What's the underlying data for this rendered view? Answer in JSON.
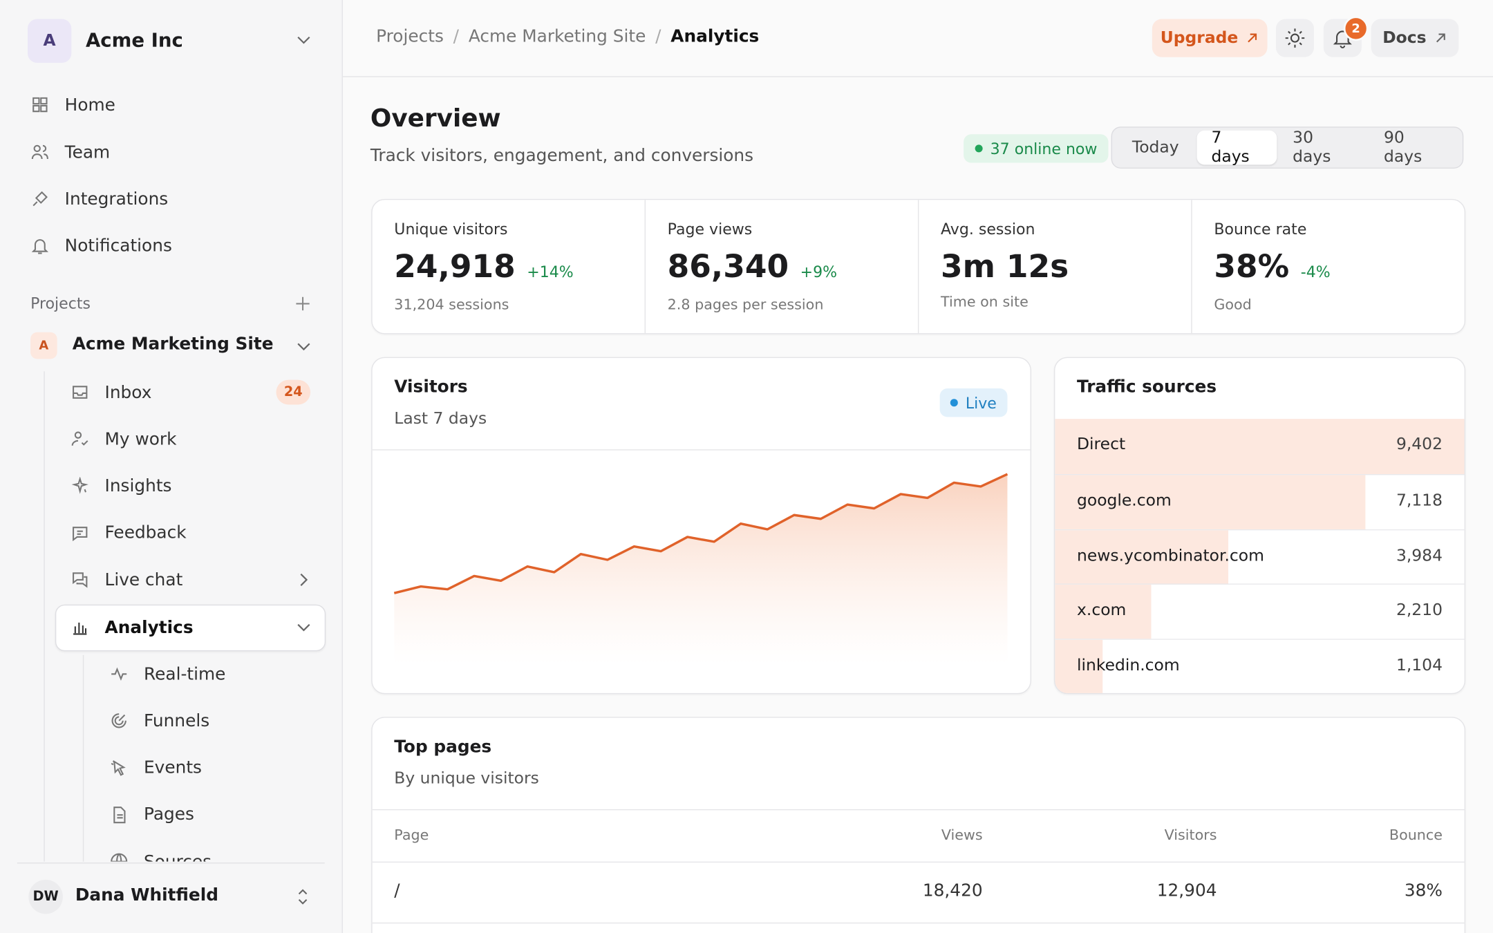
{
  "sidebar": {
    "org": {
      "initial": "A",
      "name": "Acme Inc"
    },
    "nav": [
      "Home",
      "Team",
      "Integrations",
      "Notifications"
    ],
    "projects_label": "Projects",
    "project": {
      "initial": "A",
      "name": "Acme Marketing Site"
    },
    "items": [
      {
        "label": "Inbox",
        "badge": "24"
      },
      {
        "label": "My work"
      },
      {
        "label": "Insights"
      },
      {
        "label": "Feedback"
      },
      {
        "label": "Live chat"
      }
    ],
    "analytics": "Analytics",
    "sub": [
      "Real-time",
      "Funnels",
      "Events",
      "Pages",
      "Sources"
    ],
    "user": {
      "initials": "DW",
      "name": "Dana Whitfield"
    }
  },
  "header": {
    "breadcrumbs": [
      "Projects",
      "Acme Marketing Site",
      "Analytics"
    ],
    "separator": "/",
    "upgrade": "Upgrade",
    "notifications": "2",
    "docs": "Docs"
  },
  "overview": {
    "title": "Overview",
    "subtitle": "Track visitors, engagement, and conversions",
    "online": "37 online now",
    "ranges": [
      "Today",
      "7 days",
      "30 days",
      "90 days"
    ],
    "active_range": 1
  },
  "stats": [
    {
      "label": "Unique visitors",
      "value": "24,918",
      "change": "+14%",
      "note": "31,204 sessions"
    },
    {
      "label": "Page views",
      "value": "86,340",
      "change": "+9%",
      "note": "2.8 pages per session"
    },
    {
      "label": "Avg. session",
      "value": "3m 12s",
      "note": "Time on site"
    },
    {
      "label": "Bounce rate",
      "value": "38%",
      "change": "-4%",
      "note": "Good"
    }
  ],
  "chart_data": [
    {
      "type": "line",
      "title": "Visitors",
      "subtitle": "Last 7 days",
      "badge": "Live",
      "color": "#e0622a",
      "ylim": [
        0,
        225
      ],
      "values": [
        75,
        82,
        79,
        93,
        88,
        103,
        97,
        116,
        110,
        124,
        119,
        134,
        129,
        148,
        142,
        157,
        153,
        168,
        164,
        179,
        175,
        191,
        187,
        200
      ]
    },
    {
      "type": "bar",
      "title": "Traffic sources",
      "color": "#fde8df",
      "categories": [
        "Direct",
        "google.com",
        "news.ycombinator.com",
        "x.com",
        "linkedin.com"
      ],
      "values": [
        9402,
        7118,
        3984,
        2210,
        1104
      ],
      "value_labels": [
        "9,402",
        "7,118",
        "3,984",
        "2,210",
        "1,104"
      ]
    }
  ],
  "top_pages": {
    "title": "Top pages",
    "subtitle": "By unique visitors",
    "columns": [
      "Page",
      "Views",
      "Visitors",
      "Bounce"
    ],
    "rows": [
      [
        "/",
        "18,420",
        "12,904",
        "38%"
      ]
    ]
  }
}
